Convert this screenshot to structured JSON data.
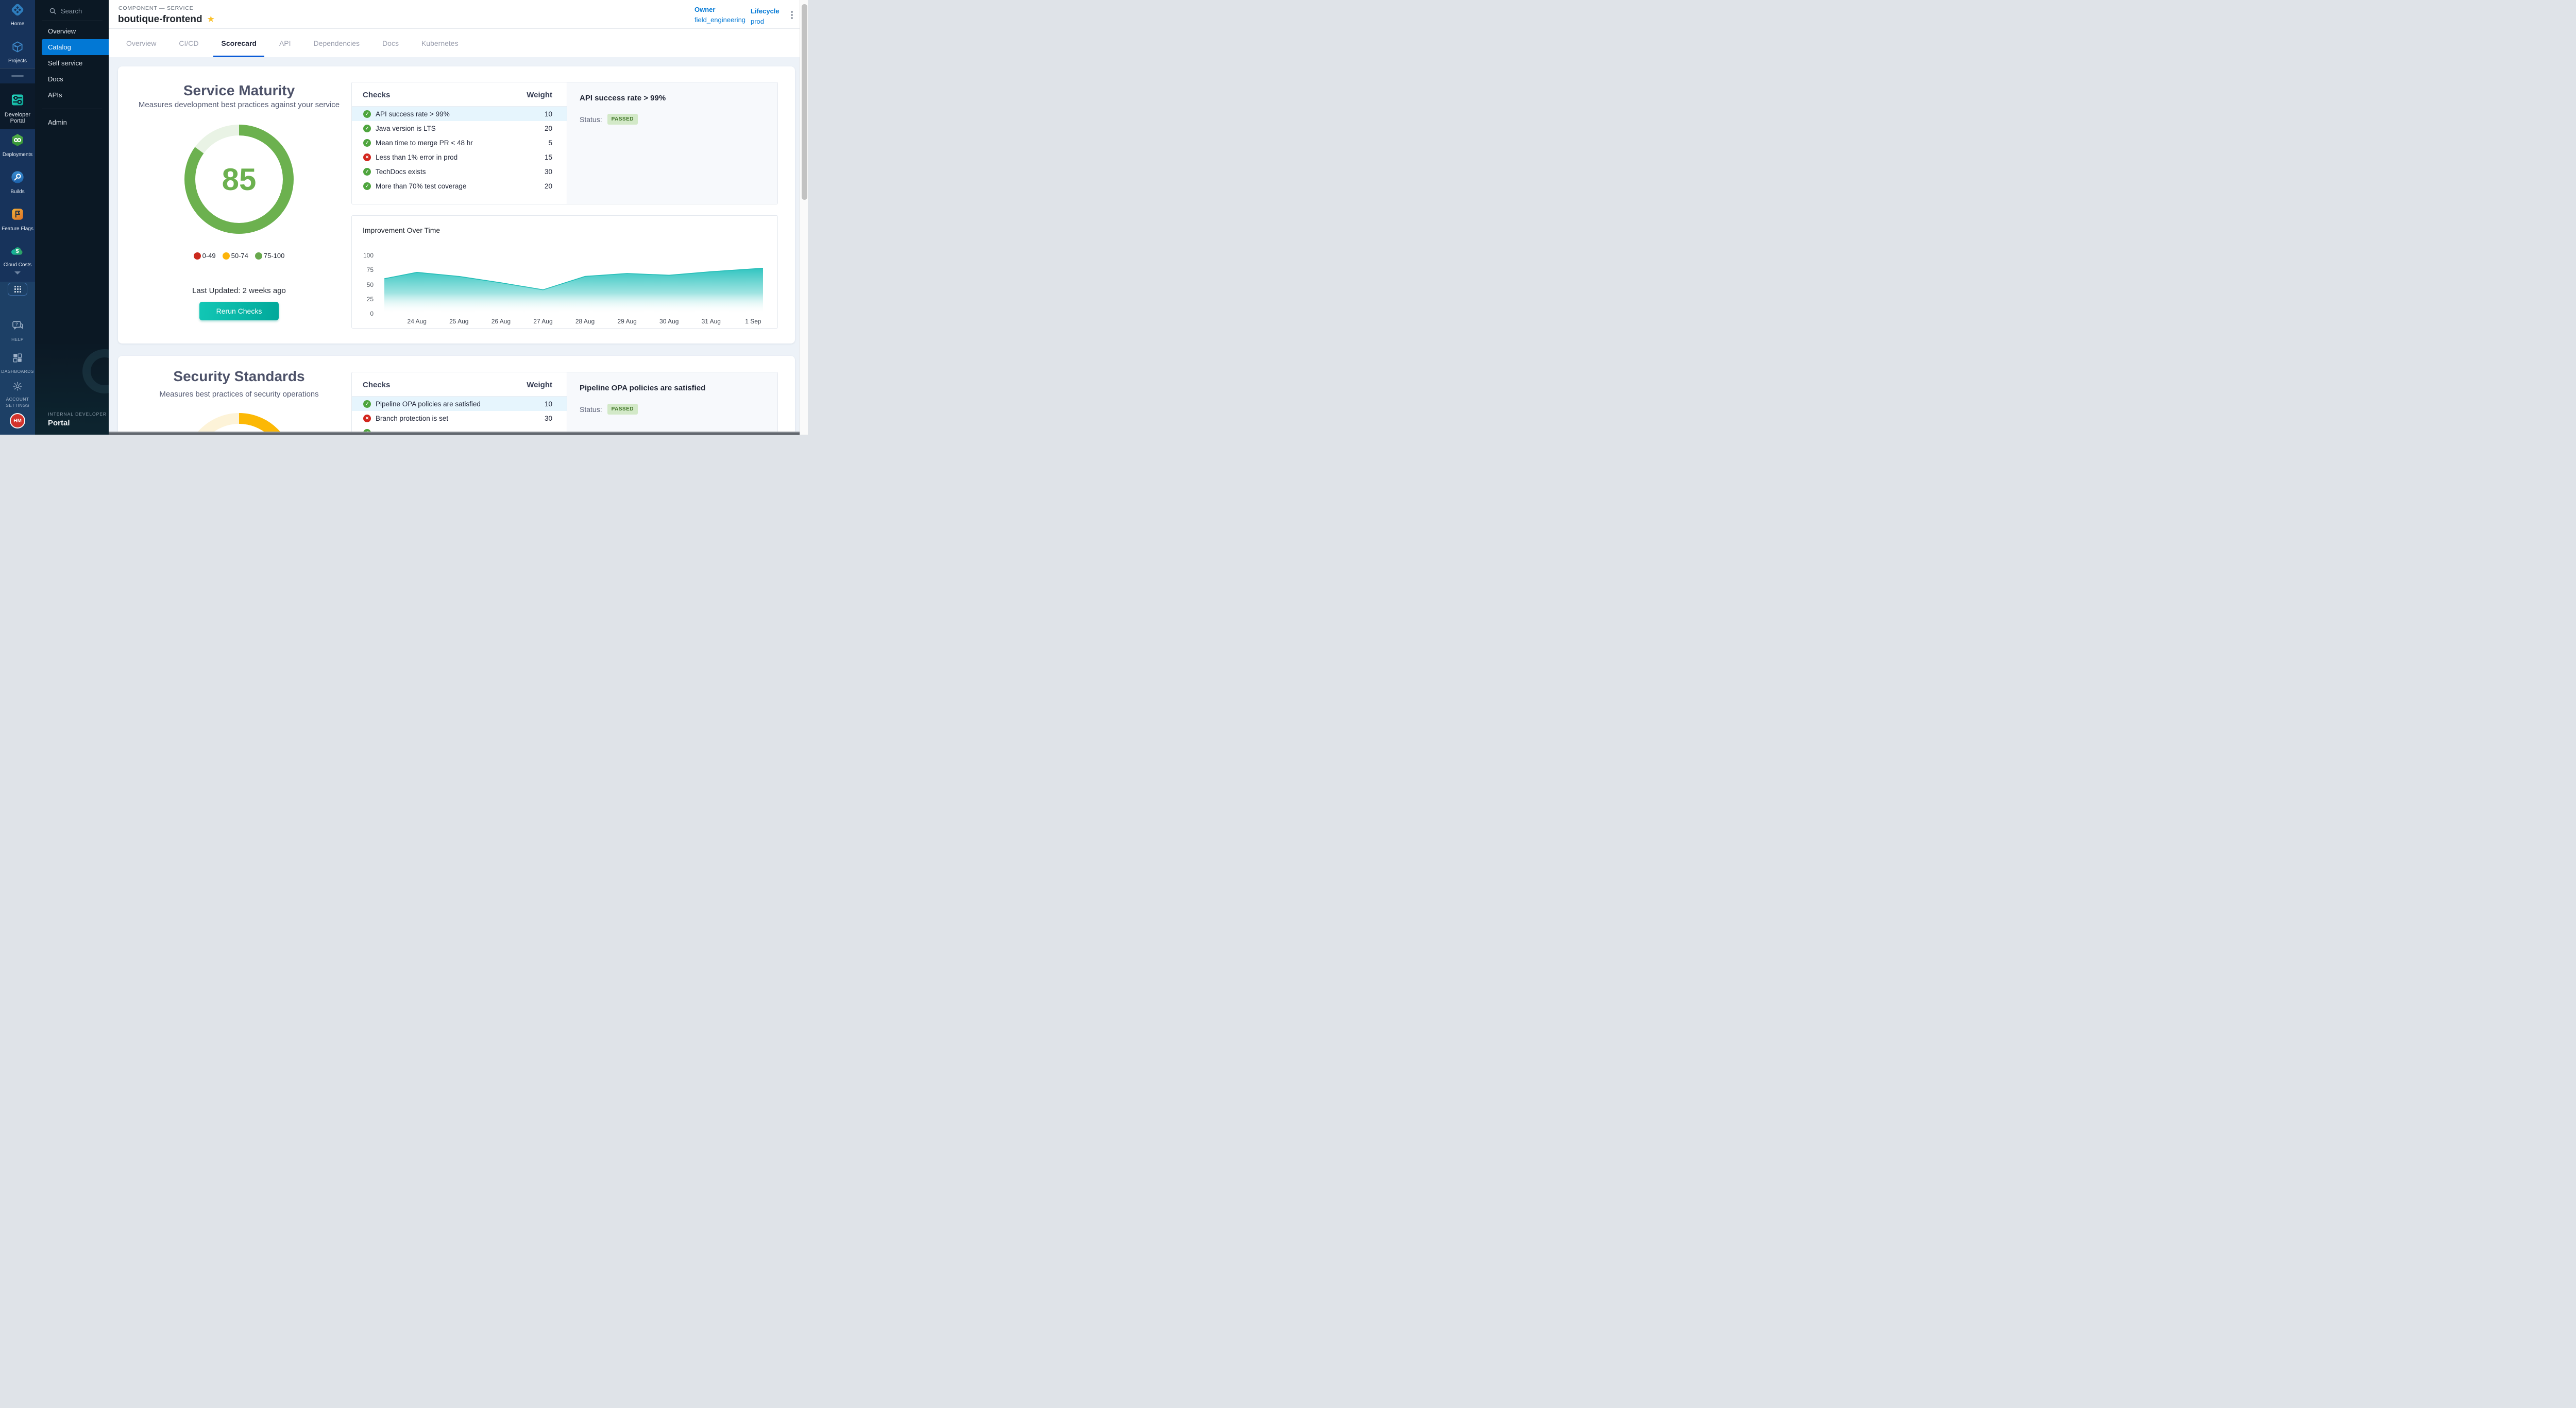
{
  "module_rail": {
    "items": [
      {
        "label": "Home"
      },
      {
        "label": "Projects"
      },
      {
        "label": "Developer Portal",
        "selected": true
      },
      {
        "label": "Deployments"
      },
      {
        "label": "Builds"
      },
      {
        "label": "Feature Flags"
      },
      {
        "label": "Cloud Costs"
      }
    ],
    "footer_items": [
      {
        "label": "HELP"
      },
      {
        "label": "DASHBOARDS"
      },
      {
        "label": "ACCOUNT SETTINGS"
      }
    ],
    "avatar_initials": "HM"
  },
  "nav_panel": {
    "search_label": "Search",
    "items": [
      {
        "label": "Overview"
      },
      {
        "label": "Catalog",
        "selected": true
      },
      {
        "label": "Self service"
      },
      {
        "label": "Docs"
      },
      {
        "label": "APIs"
      },
      {
        "label": "Admin",
        "divider_above": true
      }
    ],
    "footer_eyebrow": "INTERNAL DEVELOPER",
    "footer_title": "Portal"
  },
  "header": {
    "breadcrumb": "COMPONENT — SERVICE",
    "title": "boutique-frontend",
    "owner_label": "Owner",
    "owner_value": "field_engineering",
    "lifecycle_label": "Lifecycle",
    "lifecycle_value": "prod"
  },
  "tabs": {
    "items": [
      "Overview",
      "CI/CD",
      "Scorecard",
      "API",
      "Dependencies",
      "Docs",
      "Kubernetes"
    ],
    "active": "Scorecard"
  },
  "scorecards": [
    {
      "title": "Service Maturity",
      "subtitle": "Measures development best practices against your service",
      "score": 85,
      "donut": {
        "fill_pct": 85,
        "color": "#6cb14f",
        "track": "#e9f3e5"
      },
      "legend": [
        {
          "label": "0-49",
          "color": "#cb2a1e"
        },
        {
          "label": "50-74",
          "color": "#fcb40a"
        },
        {
          "label": "75-100",
          "color": "#68a84d"
        }
      ],
      "last_updated": "Last Updated: 2 weeks ago",
      "rerun_button": "Rerun Checks",
      "table": {
        "checks_header": "Checks",
        "weight_header": "Weight",
        "rows": [
          {
            "name": "API success rate > 99%",
            "weight": "10",
            "passed": true,
            "selected": true
          },
          {
            "name": "Java version is LTS",
            "weight": "20",
            "passed": true
          },
          {
            "name": "Mean time to merge PR < 48 hr",
            "weight": "5",
            "passed": true
          },
          {
            "name": "Less than 1% error in prod",
            "weight": "15",
            "passed": false
          },
          {
            "name": "TechDocs exists",
            "weight": "30",
            "passed": true
          },
          {
            "name": "More than 70% test coverage",
            "weight": "20",
            "passed": true
          }
        ]
      },
      "detail": {
        "title": "API success rate > 99%",
        "status_label": "Status:",
        "status": "PASSED"
      }
    },
    {
      "title": "Security Standards",
      "subtitle": "Measures best practices of security operations",
      "donut": {
        "fill_pct": 60,
        "color": "#fcb805",
        "track": "#fdf3d8"
      },
      "table": {
        "checks_header": "Checks",
        "weight_header": "Weight",
        "rows": [
          {
            "name": "Pipeline OPA policies are satisfied",
            "weight": "10",
            "passed": true,
            "selected": true
          },
          {
            "name": "Branch protection is set",
            "weight": "30",
            "passed": false
          },
          {
            "name": "",
            "weight": "",
            "passed": true
          }
        ]
      },
      "detail": {
        "title": "Pipeline OPA policies are satisfied",
        "status_label": "Status:",
        "status": "PASSED"
      }
    }
  ],
  "chart_data": {
    "type": "area",
    "title": "Improvement Over Time",
    "x": [
      "24 Aug",
      "25 Aug",
      "26 Aug",
      "27 Aug",
      "28 Aug",
      "29 Aug",
      "30 Aug",
      "31 Aug",
      "1 Sep"
    ],
    "values": [
      71,
      64,
      53,
      41,
      64,
      69,
      66,
      72,
      77
    ],
    "left_edge_value": 60,
    "right_edge_value": 78,
    "ylabel": "",
    "xlabel": "",
    "ylim": [
      0,
      100
    ],
    "yticks": [
      0,
      25,
      50,
      75,
      100
    ],
    "area_color": "#2cc3be",
    "grid": false,
    "legend_shown": false
  },
  "colors": {
    "nav_selected_blue": "#0278d5",
    "tab_underline": "#0b5cd7",
    "pass_green": "#4fa53e",
    "fail_red": "#d2261d",
    "selected_row": "#e6f5fd",
    "badge_bg": "#d3e9c8",
    "badge_text": "#3f7527",
    "star": "#fbc22d",
    "button_teal_start": "#12c7b5",
    "button_teal_end": "#01a89a"
  }
}
